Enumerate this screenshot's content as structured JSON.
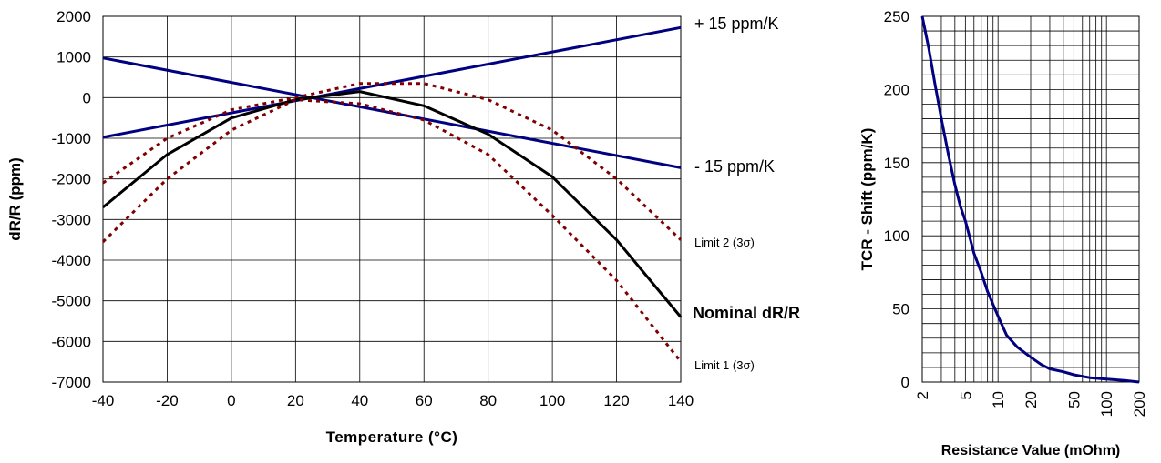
{
  "chart_data": [
    {
      "type": "line",
      "xlabel": "Temperature (°C)",
      "ylabel": "dR/R (ppm)",
      "xlim": [
        -40,
        140
      ],
      "ylim": [
        -7000,
        2000
      ],
      "x_ticks": [
        "-40",
        "-20",
        "0",
        "20",
        "40",
        "60",
        "80",
        "100",
        "120",
        "140"
      ],
      "y_ticks": [
        "2000",
        "1000",
        "0",
        "-1000",
        "-2000",
        "-3000",
        "-4000",
        "-5000",
        "-6000",
        "-7000"
      ],
      "grid": true,
      "series": [
        {
          "name": "+ 15 ppm/K",
          "color": "#000080",
          "style": "solid",
          "x": [
            -40,
            140
          ],
          "y": [
            -975,
            1725
          ]
        },
        {
          "name": "- 15 ppm/K",
          "color": "#000080",
          "style": "solid",
          "x": [
            -40,
            140
          ],
          "y": [
            975,
            -1725
          ]
        },
        {
          "name": "Limit 2 (3σ)",
          "color": "#800000",
          "style": "dotted",
          "x": [
            -40,
            -20,
            0,
            20,
            40,
            60,
            80,
            100,
            120,
            140
          ],
          "y": [
            -2100,
            -1000,
            -300,
            0,
            350,
            350,
            -50,
            -800,
            -2000,
            -3500
          ]
        },
        {
          "name": "Nominal dR/R",
          "color": "#000000",
          "style": "solid",
          "x": [
            -40,
            -20,
            0,
            20,
            40,
            60,
            80,
            100,
            120,
            140
          ],
          "y": [
            -2700,
            -1400,
            -500,
            -50,
            150,
            -200,
            -900,
            -1950,
            -3500,
            -5400
          ]
        },
        {
          "name": "Limit 1 (3σ)",
          "color": "#800000",
          "style": "dotted",
          "x": [
            -40,
            -20,
            0,
            20,
            40,
            60,
            80,
            100,
            120,
            140
          ],
          "y": [
            -3550,
            -2000,
            -800,
            -50,
            -150,
            -550,
            -1400,
            -2900,
            -4500,
            -6500
          ]
        }
      ],
      "annotations": [
        "+ 15 ppm/K",
        "- 15 ppm/K",
        "Limit 2 (3σ)",
        "Nominal dR/R",
        "Limit 1 (3σ)"
      ]
    },
    {
      "type": "line",
      "xlabel": "Resistance Value (mOhm)",
      "ylabel": "TCR - Shift (ppm/K)",
      "x_scale": "log",
      "xlim": [
        2,
        200
      ],
      "ylim": [
        0,
        250
      ],
      "x_ticks": [
        "2",
        "5",
        "10",
        "20",
        "50",
        "100",
        "200"
      ],
      "y_ticks": [
        "250",
        "200",
        "150",
        "100",
        "50",
        "0"
      ],
      "grid": true,
      "series": [
        {
          "color": "#000080",
          "style": "solid",
          "x": [
            2,
            2.3,
            2.6,
            3,
            3.5,
            4,
            4.5,
            5,
            6,
            7,
            8,
            10,
            12,
            15,
            20,
            25,
            30,
            40,
            50,
            70,
            100,
            150,
            200
          ],
          "y": [
            250,
            228,
            205,
            180,
            155,
            135,
            120,
            110,
            88,
            75,
            62,
            45,
            32,
            24,
            17,
            12,
            9,
            7,
            5,
            3,
            2,
            1,
            0
          ]
        }
      ]
    }
  ]
}
